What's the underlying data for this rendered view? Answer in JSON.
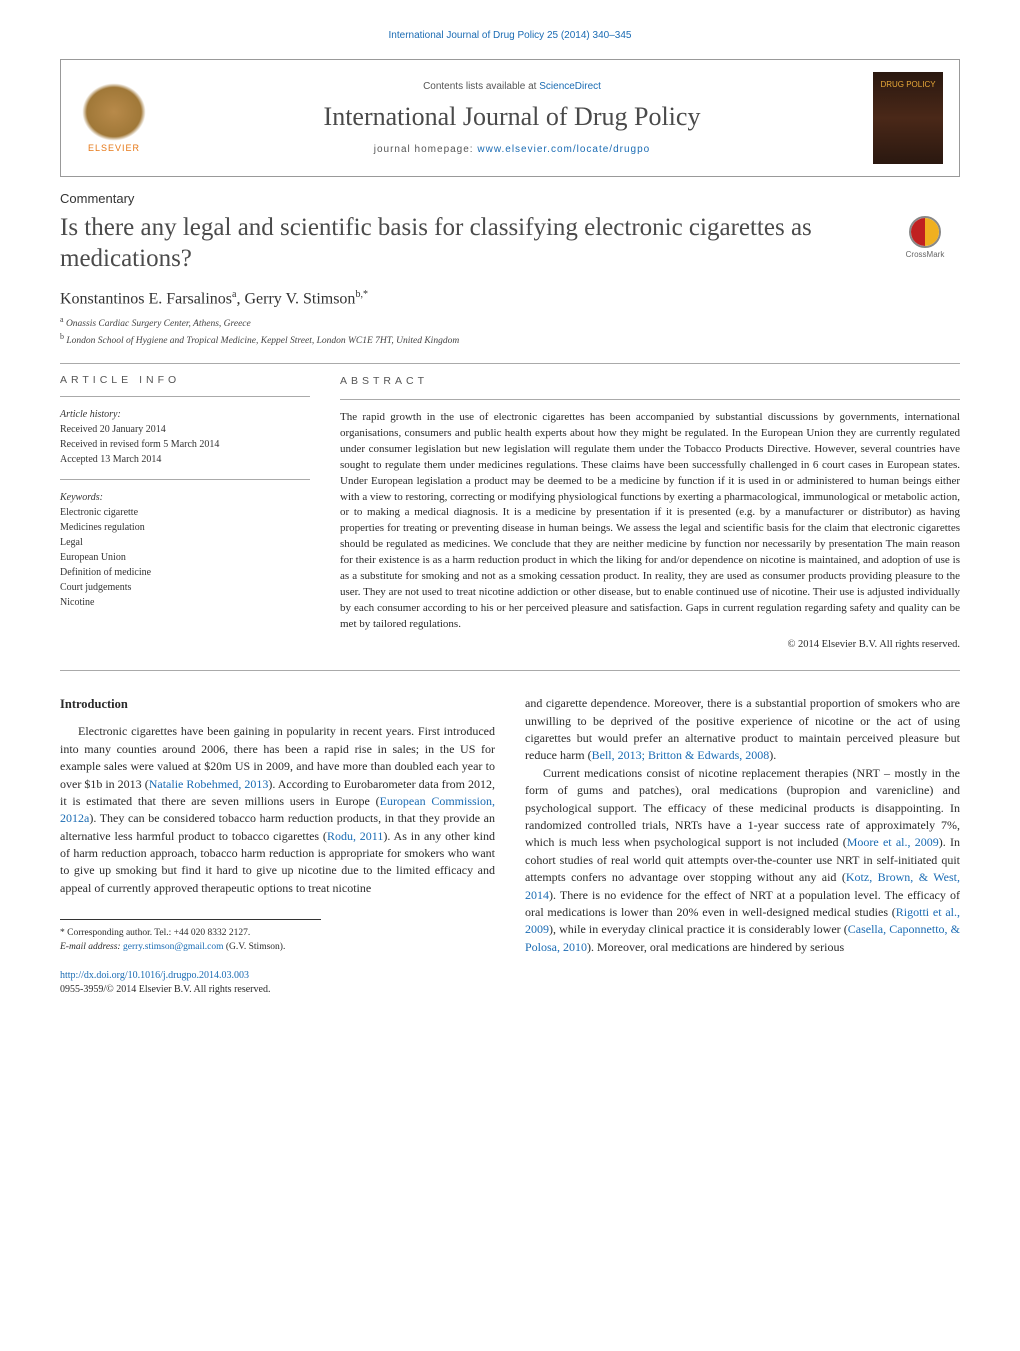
{
  "running_head": "International Journal of Drug Policy 25 (2014) 340–345",
  "header": {
    "elsevier_label": "ELSEVIER",
    "contents_prefix": "Contents lists available at ",
    "contents_link": "ScienceDirect",
    "journal_name": "International Journal of Drug Policy",
    "homepage_prefix": "journal homepage: ",
    "homepage_link": "www.elsevier.com/locate/drugpo",
    "cover_title": "DRUG POLICY"
  },
  "article": {
    "type": "Commentary",
    "title": "Is there any legal and scientific basis for classifying electronic cigarettes as medications?",
    "crossmark_label": "CrossMark",
    "authors_html": "Konstantinos E. Farsalinos",
    "author1": "Konstantinos E. Farsalinos",
    "author1_aff": "a",
    "author_sep": ", ",
    "author2": "Gerry V. Stimson",
    "author2_aff": "b,*",
    "affiliations": {
      "a": "Onassis Cardiac Surgery Center, Athens, Greece",
      "b": "London School of Hygiene and Tropical Medicine, Keppel Street, London WC1E 7HT, United Kingdom"
    }
  },
  "info": {
    "heading": "article info",
    "history_label": "Article history:",
    "received": "Received 20 January 2014",
    "revised": "Received in revised form 5 March 2014",
    "accepted": "Accepted 13 March 2014",
    "keywords_label": "Keywords:",
    "keywords": [
      "Electronic cigarette",
      "Medicines regulation",
      "Legal",
      "European Union",
      "Definition of medicine",
      "Court judgements",
      "Nicotine"
    ]
  },
  "abstract": {
    "heading": "abstract",
    "text": "The rapid growth in the use of electronic cigarettes has been accompanied by substantial discussions by governments, international organisations, consumers and public health experts about how they might be regulated. In the European Union they are currently regulated under consumer legislation but new legislation will regulate them under the Tobacco Products Directive. However, several countries have sought to regulate them under medicines regulations. These claims have been successfully challenged in 6 court cases in European states. Under European legislation a product may be deemed to be a medicine by function if it is used in or administered to human beings either with a view to restoring, correcting or modifying physiological functions by exerting a pharmacological, immunological or metabolic action, or to making a medical diagnosis. It is a medicine by presentation if it is presented (e.g. by a manufacturer or distributor) as having properties for treating or preventing disease in human beings. We assess the legal and scientific basis for the claim that electronic cigarettes should be regulated as medicines. We conclude that they are neither medicine by function nor necessarily by presentation The main reason for their existence is as a harm reduction product in which the liking for and/or dependence on nicotine is maintained, and adoption of use is as a substitute for smoking and not as a smoking cessation product. In reality, they are used as consumer products providing pleasure to the user. They are not used to treat nicotine addiction or other disease, but to enable continued use of nicotine. Their use is adjusted individually by each consumer according to his or her perceived pleasure and satisfaction. Gaps in current regulation regarding safety and quality can be met by tailored regulations.",
    "copyright": "© 2014 Elsevier B.V. All rights reserved."
  },
  "body": {
    "intro_heading": "Introduction",
    "col1_p1_a": "Electronic cigarettes have been gaining in popularity in recent years. First introduced into many counties around 2006, there has been a rapid rise in sales; in the US for example sales were valued at $20m US in 2009, and have more than doubled each year to over $1b in 2013 (",
    "col1_p1_ref1": "Natalie Robehmed, 2013",
    "col1_p1_b": "). According to Eurobarometer data from 2012, it is estimated that there are seven millions users in Europe (",
    "col1_p1_ref2": "European Commission, 2012a",
    "col1_p1_c": "). They can be considered tobacco harm reduction products, in that they provide an alternative less harmful product to tobacco cigarettes (",
    "col1_p1_ref3": "Rodu, 2011",
    "col1_p1_d": "). As in any other kind of harm reduction approach, tobacco harm reduction is appropriate for smokers who want to give up smoking but find it hard to give up nicotine due to the limited efficacy and appeal of currently approved therapeutic options to treat nicotine",
    "col2_p1_a": "and cigarette dependence. Moreover, there is a substantial proportion of smokers who are unwilling to be deprived of the positive experience of nicotine or the act of using cigarettes but would prefer an alternative product to maintain perceived pleasure but reduce harm (",
    "col2_p1_ref1": "Bell, 2013; Britton & Edwards, 2008",
    "col2_p1_b": ").",
    "col2_p2_a": "Current medications consist of nicotine replacement therapies (NRT – mostly in the form of gums and patches), oral medications (bupropion and varenicline) and psychological support. The efficacy of these medicinal products is disappointing. In randomized controlled trials, NRTs have a 1-year success rate of approximately 7%, which is much less when psychological support is not included (",
    "col2_p2_ref1": "Moore et al., 2009",
    "col2_p2_b": "). In cohort studies of real world quit attempts over-the-counter use NRT in self-initiated quit attempts confers no advantage over stopping without any aid (",
    "col2_p2_ref2": "Kotz, Brown, & West, 2014",
    "col2_p2_c": "). There is no evidence for the effect of NRT at a population level. The efficacy of oral medications is lower than 20% even in well-designed medical studies (",
    "col2_p2_ref3": "Rigotti et al., 2009",
    "col2_p2_d": "), while in everyday clinical practice it is considerably lower (",
    "col2_p2_ref4": "Casella, Caponnetto, & Polosa, 2010",
    "col2_p2_e": "). Moreover, oral medications are hindered by serious"
  },
  "footnotes": {
    "corr_label": "* Corresponding author. Tel.: +44 020 8332 2127.",
    "email_label": "E-mail address: ",
    "email": "gerry.stimson@gmail.com",
    "email_suffix": " (G.V. Stimson)."
  },
  "doi": {
    "url": "http://dx.doi.org/10.1016/j.drugpo.2014.03.003",
    "issn_line": "0955-3959/© 2014 Elsevier B.V. All rights reserved."
  },
  "colors": {
    "link": "#1a6bb3",
    "elsevier_orange": "#e67817",
    "text": "#2a2a2a",
    "rule": "#aaaaaa"
  }
}
